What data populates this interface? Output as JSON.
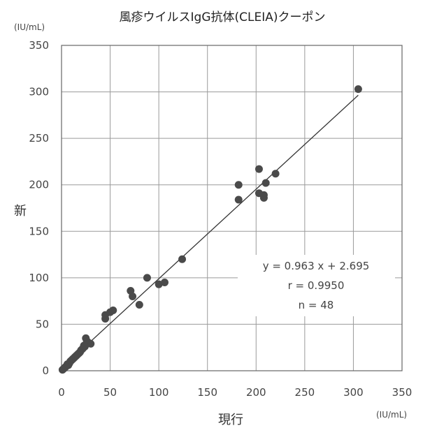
{
  "chart_data": {
    "type": "scatter",
    "title": "風疹ウイルスIgG抗体(CLEIA)クーポン",
    "xlabel": "現行",
    "ylabel": "新",
    "x_unit": "(IU/mL)",
    "y_unit": "(IU/mL)",
    "xlim": [
      0,
      350
    ],
    "ylim": [
      0,
      350
    ],
    "xticks": [
      0,
      50,
      100,
      150,
      200,
      250,
      300,
      350
    ],
    "yticks": [
      0,
      50,
      100,
      150,
      200,
      250,
      300,
      350
    ],
    "grid": true,
    "regression": {
      "slope": 0.963,
      "intercept": 2.695
    },
    "stats": [
      "y = 0.963  x  + 2.695",
      "r = 0.9950",
      "n = 48"
    ],
    "points": [
      [
        1,
        1
      ],
      [
        2,
        2
      ],
      [
        3,
        3
      ],
      [
        4,
        4
      ],
      [
        5,
        5
      ],
      [
        6,
        7
      ],
      [
        7,
        6
      ],
      [
        8,
        8
      ],
      [
        9,
        10
      ],
      [
        10,
        11
      ],
      [
        11,
        12
      ],
      [
        12,
        13
      ],
      [
        13,
        14
      ],
      [
        14,
        15
      ],
      [
        15,
        16
      ],
      [
        16,
        17
      ],
      [
        18,
        19
      ],
      [
        19,
        20
      ],
      [
        20,
        22
      ],
      [
        22,
        24
      ],
      [
        23,
        27
      ],
      [
        25,
        35
      ],
      [
        26,
        32
      ],
      [
        28,
        30
      ],
      [
        30,
        29
      ],
      [
        45,
        60
      ],
      [
        45,
        56
      ],
      [
        50,
        63
      ],
      [
        53,
        65
      ],
      [
        71,
        86
      ],
      [
        73,
        80
      ],
      [
        80,
        71
      ],
      [
        88,
        100
      ],
      [
        100,
        93
      ],
      [
        106,
        95
      ],
      [
        124,
        120
      ],
      [
        182,
        200
      ],
      [
        182,
        184
      ],
      [
        203,
        217
      ],
      [
        203,
        191
      ],
      [
        208,
        189
      ],
      [
        208,
        186
      ],
      [
        210,
        202
      ],
      [
        220,
        212
      ],
      [
        305,
        303
      ],
      [
        17,
        18
      ],
      [
        21,
        23
      ],
      [
        24,
        26
      ]
    ]
  }
}
